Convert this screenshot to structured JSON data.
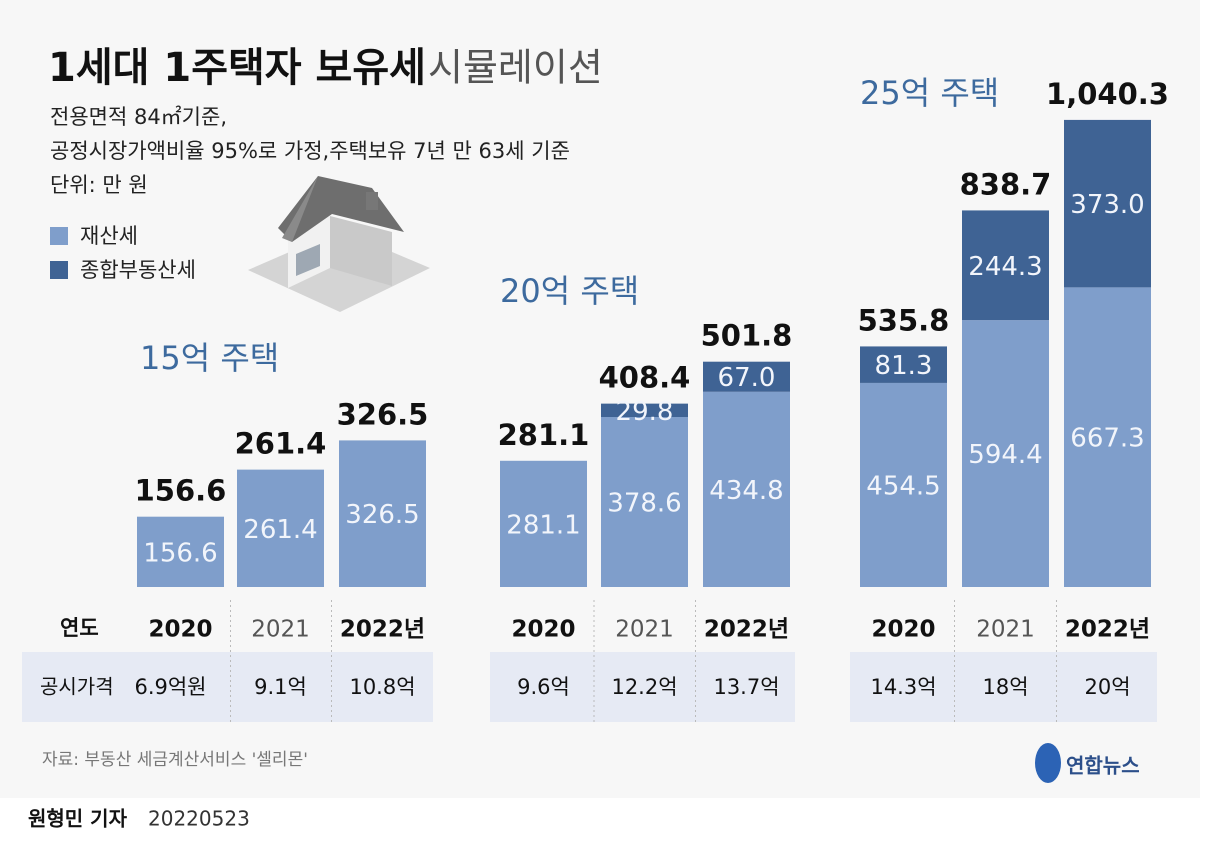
{
  "chart_data": {
    "type": "bar",
    "stacked": true,
    "title": "1세대 1주택자 보유세",
    "title_light": "시뮬레이션",
    "notes": [
      "전용면적 84㎡기준,",
      "공정시장가액비율 95%로 가정,주택보유 7년 만 63세 기준",
      "단위: 만 원"
    ],
    "year_label": "연도",
    "price_label": "공시가격",
    "groups": [
      {
        "label": "15억 주택",
        "categories": [
          "2020",
          "2021",
          "2022년"
        ],
        "prices": [
          "6.9억원",
          "9.1억",
          "10.8억"
        ],
        "totals": [
          156.6,
          261.4,
          326.5
        ],
        "series": [
          {
            "name": "재산세",
            "color": "#7f9ecb",
            "values": [
              156.6,
              261.4,
              326.5
            ]
          },
          {
            "name": "종합부동산세",
            "color": "#3f6394",
            "values": [
              null,
              null,
              null
            ]
          }
        ]
      },
      {
        "label": "20억 주택",
        "categories": [
          "2020",
          "2021",
          "2022년"
        ],
        "prices": [
          "9.6억",
          "12.2억",
          "13.7억"
        ],
        "totals": [
          281.1,
          408.4,
          501.8
        ],
        "series": [
          {
            "name": "재산세",
            "color": "#7f9ecb",
            "values": [
              281.1,
              378.6,
              434.8
            ]
          },
          {
            "name": "종합부동산세",
            "color": "#3f6394",
            "values": [
              null,
              29.8,
              67.0
            ],
            "value_labels": [
              null,
              "29.8",
              "67.0"
            ]
          }
        ]
      },
      {
        "label": "25억 주택",
        "categories": [
          "2020",
          "2021",
          "2022년"
        ],
        "prices": [
          "14.3억",
          "18억",
          "20억"
        ],
        "totals": [
          535.8,
          838.7,
          1040.3
        ],
        "total_labels": [
          "535.8",
          "838.7",
          "1,040.3"
        ],
        "series": [
          {
            "name": "재산세",
            "color": "#7f9ecb",
            "values": [
              454.5,
              594.4,
              667.3
            ]
          },
          {
            "name": "종합부동산세",
            "color": "#3f6394",
            "values": [
              81.3,
              244.3,
              373.0
            ],
            "value_labels": [
              "81.3",
              "244.3",
              "373.0"
            ]
          }
        ]
      }
    ],
    "source": "자료: 부동산 세금계산서비스 '셀리몬'",
    "logo": "연합뉴스",
    "byline": "원형민 기자",
    "date": "20220523"
  }
}
